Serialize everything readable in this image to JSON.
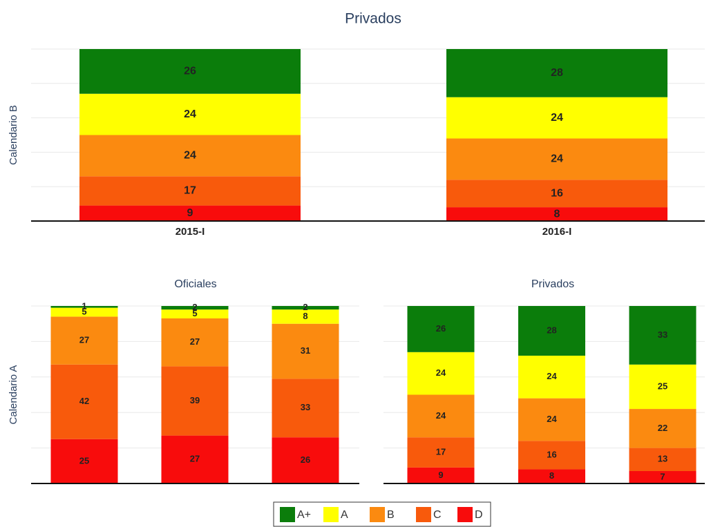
{
  "legend": [
    {
      "name": "A+",
      "color": "#0b7d0b"
    },
    {
      "name": "A",
      "color": "#ffff00"
    },
    {
      "name": "B",
      "color": "#fb8a10"
    },
    {
      "name": "C",
      "color": "#f85a0c"
    },
    {
      "name": "D",
      "color": "#f80c0c"
    }
  ],
  "chart_data": [
    {
      "type": "bar",
      "stacked": true,
      "title": "Privados",
      "y_label": "Calendario B",
      "categories": [
        "2015-I",
        "2016-I"
      ],
      "series": [
        {
          "values": [
            26,
            28
          ]
        },
        {
          "values": [
            24,
            24
          ]
        },
        {
          "values": [
            24,
            24
          ]
        },
        {
          "values": [
            17,
            16
          ]
        },
        {
          "values": [
            9,
            8
          ]
        }
      ],
      "ylim": [
        0,
        100
      ],
      "yticks": [
        0,
        20,
        40,
        60,
        80,
        100
      ],
      "grid": true
    },
    {
      "type": "bar",
      "stacked": true,
      "title": "Oficiales",
      "y_label": "Calendario A",
      "categories": [
        null,
        null,
        null
      ],
      "series": [
        {
          "values": [
            1,
            2,
            2
          ]
        },
        {
          "values": [
            5,
            5,
            8
          ]
        },
        {
          "values": [
            27,
            27,
            31
          ]
        },
        {
          "values": [
            42,
            39,
            33
          ]
        },
        {
          "values": [
            25,
            27,
            26
          ]
        }
      ],
      "ylim": [
        0,
        100
      ],
      "yticks": [
        0,
        20,
        40,
        60,
        80,
        100
      ],
      "grid": true
    },
    {
      "type": "bar",
      "stacked": true,
      "title": "Privados",
      "categories": [
        null,
        null,
        null
      ],
      "series": [
        {
          "values": [
            26,
            28,
            33
          ]
        },
        {
          "values": [
            24,
            24,
            25
          ]
        },
        {
          "values": [
            24,
            24,
            22
          ]
        },
        {
          "values": [
            17,
            16,
            13
          ]
        },
        {
          "values": [
            9,
            8,
            7
          ]
        }
      ],
      "ylim": [
        0,
        100
      ],
      "yticks": [
        0,
        20,
        40,
        60,
        80,
        100
      ],
      "grid": true
    }
  ]
}
